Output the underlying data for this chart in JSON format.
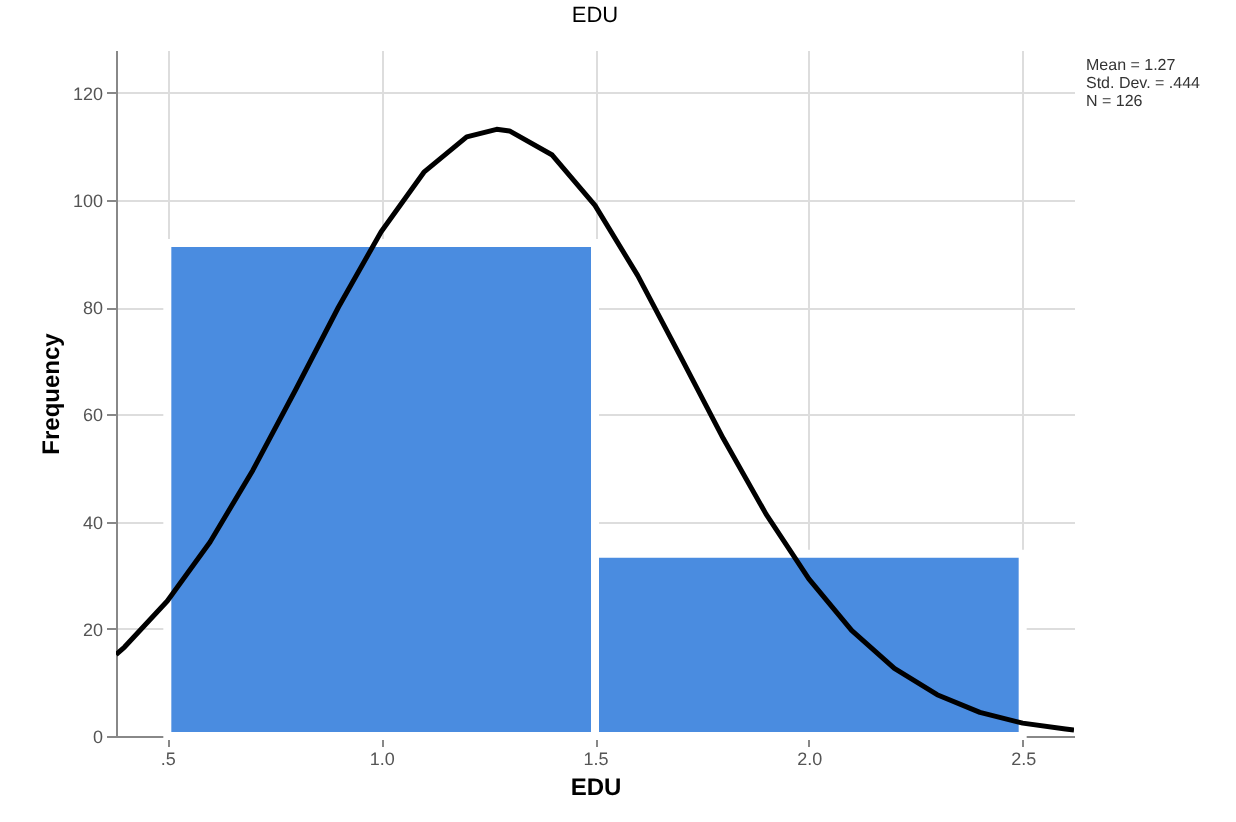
{
  "chart_data": {
    "type": "histogram",
    "title": "EDU",
    "xlabel": "EDU",
    "ylabel": "Frequency",
    "annotations": [
      "Mean = 1.27",
      "Std. Dev. = .444",
      "N = 126"
    ],
    "series": [
      {
        "type": "histogram",
        "bins": [
          0.5,
          1.5,
          2.5
        ],
        "values": [
          92,
          34
        ],
        "color": "#4a8ce0"
      },
      {
        "type": "line",
        "color": "#000000",
        "x": [
          0.38,
          0.4,
          0.5,
          0.6,
          0.7,
          0.8,
          0.9,
          1.0,
          1.1,
          1.2,
          1.27,
          1.3,
          1.4,
          1.5,
          1.6,
          1.7,
          1.8,
          1.9,
          2.0,
          2.1,
          2.2,
          2.3,
          2.4,
          2.5,
          2.6,
          2.62
        ],
        "values": [
          15.2,
          16.6,
          25.2,
          36.2,
          49.6,
          64.6,
          80.0,
          94.1,
          105.2,
          111.8,
          113.2,
          112.9,
          108.4,
          99.0,
          85.9,
          70.8,
          55.5,
          41.4,
          29.3,
          19.7,
          12.6,
          7.7,
          4.4,
          2.4,
          1.3,
          1.1
        ]
      }
    ],
    "xlim": [
      0.38,
      2.62
    ],
    "xticks": [
      {
        "value": 0.5,
        "label": ".5"
      },
      {
        "value": 1,
        "label": "1.0"
      },
      {
        "value": 1.5,
        "label": "1.5"
      },
      {
        "value": 2,
        "label": "2.0"
      },
      {
        "value": 2.5,
        "label": "2.5"
      }
    ],
    "ylim": [
      0,
      128
    ],
    "yticks": [
      0,
      20,
      40,
      60,
      80,
      100,
      120
    ],
    "grid": true
  }
}
